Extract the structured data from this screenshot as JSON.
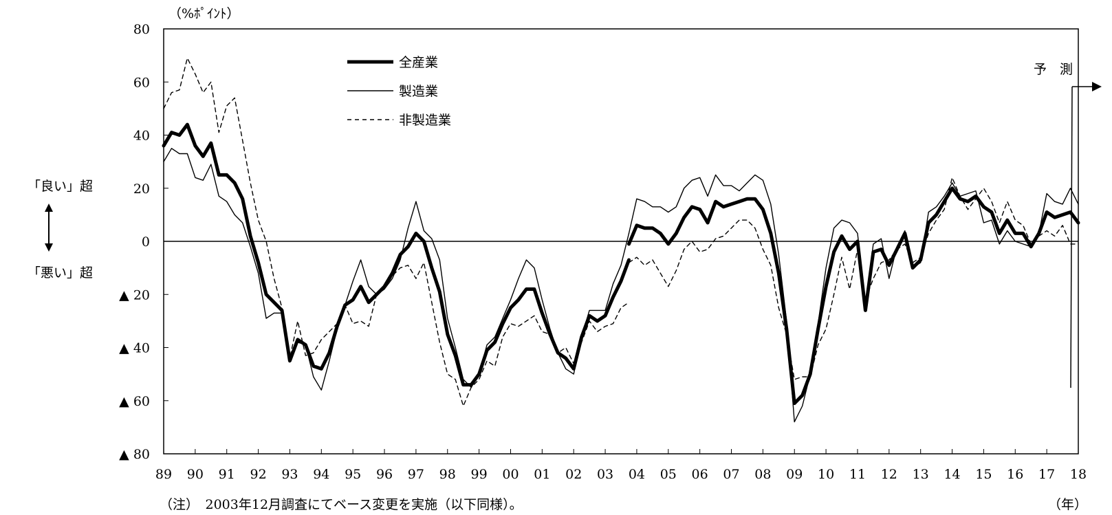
{
  "chart_data": {
    "type": "line",
    "y_unit": "（%ﾎﾟｲﾝﾄ）",
    "x_unit": "（年）",
    "note": "（注）　2003年12月調査にてベース変更を実施（以下同様）。",
    "ylim": [
      -80,
      80
    ],
    "y_ticks": [
      {
        "value": 80,
        "label": "80"
      },
      {
        "value": 60,
        "label": "60"
      },
      {
        "value": 40,
        "label": "40"
      },
      {
        "value": 20,
        "label": "20"
      },
      {
        "value": 0,
        "label": "0"
      },
      {
        "value": -20,
        "label": "▲ 20"
      },
      {
        "value": -40,
        "label": "▲ 40"
      },
      {
        "value": -60,
        "label": "▲ 60"
      },
      {
        "value": -80,
        "label": "▲ 80"
      }
    ],
    "x_ticks": [
      "89",
      "90",
      "91",
      "92",
      "93",
      "94",
      "95",
      "96",
      "97",
      "98",
      "99",
      "00",
      "01",
      "02",
      "03",
      "04",
      "05",
      "06",
      "07",
      "08",
      "09",
      "10",
      "11",
      "12",
      "13",
      "14",
      "15",
      "16",
      "17",
      "18"
    ],
    "left_annotations": {
      "upper": "「良い」超",
      "lower": "「悪い」超",
      "arrow_icon": "up-down-arrow-icon"
    },
    "forecast_label": "予　測",
    "grid": false,
    "legend_position": "top-center",
    "series": [
      {
        "name": "全産業",
        "color": "#000000",
        "style": "thick",
        "segments": [
          {
            "x": [
              1989.0,
              1989.25,
              1989.5,
              1989.75,
              1990.0,
              1990.25,
              1990.5,
              1990.75,
              1991.0,
              1991.25,
              1991.5,
              1991.75,
              1992.0,
              1992.25,
              1992.5,
              1992.75,
              1993.0,
              1993.25,
              1993.5,
              1993.75,
              1994.0,
              1994.25,
              1994.5,
              1994.75,
              1995.0,
              1995.25,
              1995.5,
              1995.75,
              1996.0,
              1996.25,
              1996.5,
              1996.75,
              1997.0,
              1997.25,
              1997.5,
              1997.75,
              1998.0,
              1998.25,
              1998.5,
              1998.75,
              1999.0,
              1999.25,
              1999.5,
              1999.75,
              2000.0,
              2000.25,
              2000.5,
              2000.75,
              2001.0,
              2001.25,
              2001.5,
              2001.75,
              2002.0,
              2002.25,
              2002.5,
              2002.75,
              2003.0,
              2003.25,
              2003.5,
              2003.75
            ],
            "y": [
              36,
              41,
              40,
              44,
              36,
              32,
              37,
              25,
              25,
              22,
              16,
              2,
              -8,
              -20,
              -23,
              -26,
              -45,
              -37,
              -39,
              -47,
              -48,
              -42,
              -32,
              -24,
              -22,
              -17,
              -23,
              -20,
              -17,
              -12,
              -5,
              -2,
              3,
              0,
              -10,
              -19,
              -35,
              -43,
              -54,
              -54,
              -50,
              -41,
              -38,
              -31,
              -25,
              -22,
              -18,
              -18,
              -27,
              -35,
              -42,
              -44,
              -48,
              -36,
              -28,
              -30,
              -28,
              -21,
              -15,
              -7
            ]
          },
          {
            "x": [
              2003.75,
              2004.0,
              2004.25,
              2004.5,
              2004.75,
              2005.0,
              2005.25,
              2005.5,
              2005.75,
              2006.0,
              2006.25,
              2006.5,
              2006.75,
              2007.0,
              2007.25,
              2007.5,
              2007.75,
              2008.0,
              2008.25,
              2008.5,
              2008.75,
              2009.0,
              2009.25,
              2009.5,
              2009.75,
              2010.0,
              2010.25,
              2010.5,
              2010.75,
              2011.0,
              2011.25,
              2011.5,
              2011.75,
              2012.0,
              2012.25,
              2012.5,
              2012.75,
              2013.0,
              2013.25,
              2013.5,
              2013.75,
              2014.0,
              2014.25,
              2014.5,
              2014.75,
              2015.0,
              2015.25,
              2015.5,
              2015.75,
              2016.0,
              2016.25,
              2016.5,
              2016.75,
              2017.0,
              2017.25,
              2017.5,
              2017.75,
              2018.0
            ],
            "y": [
              -1,
              6,
              5,
              5,
              3,
              -1,
              3,
              9,
              13,
              12,
              7,
              15,
              13,
              14,
              15,
              16,
              16,
              12,
              3,
              -12,
              -33,
              -61,
              -58,
              -50,
              -33,
              -17,
              -4,
              2,
              -3,
              0,
              -26,
              -4,
              -3,
              -9,
              -3,
              3,
              -10,
              -7,
              7,
              10,
              15,
              20,
              16,
              15,
              17,
              13,
              11,
              3,
              8,
              3,
              3,
              -2,
              3,
              11,
              9,
              10,
              11,
              7
            ]
          }
        ]
      },
      {
        "name": "製造業",
        "color": "#000000",
        "style": "thin",
        "segments": [
          {
            "x": [
              1989.0,
              1989.25,
              1989.5,
              1989.75,
              1990.0,
              1990.25,
              1990.5,
              1990.75,
              1991.0,
              1991.25,
              1991.5,
              1991.75,
              1992.0,
              1992.25,
              1992.5,
              1992.75,
              1993.0,
              1993.25,
              1993.5,
              1993.75,
              1994.0,
              1994.25,
              1994.5,
              1994.75,
              1995.0,
              1995.25,
              1995.5,
              1995.75,
              1996.0,
              1996.25,
              1996.5,
              1996.75,
              1997.0,
              1997.25,
              1997.5,
              1997.75,
              1998.0,
              1998.25,
              1998.5,
              1998.75,
              1999.0,
              1999.25,
              1999.5,
              1999.75,
              2000.0,
              2000.25,
              2000.5,
              2000.75,
              2001.0,
              2001.25,
              2001.5,
              2001.75,
              2002.0,
              2002.25,
              2002.5,
              2002.75,
              2003.0,
              2003.25,
              2003.5,
              2003.75
            ],
            "y": [
              30,
              35,
              33,
              33,
              24,
              23,
              29,
              17,
              15,
              10,
              7,
              -2,
              -12,
              -29,
              -27,
              -27,
              -44,
              -38,
              -39,
              -51,
              -56,
              -45,
              -33,
              -24,
              -15,
              -7,
              -17,
              -20,
              -18,
              -14,
              -7,
              5,
              15,
              4,
              1,
              -7,
              -29,
              -40,
              -52,
              -55,
              -50,
              -39,
              -36,
              -29,
              -22,
              -14,
              -7,
              -10,
              -22,
              -33,
              -42,
              -48,
              -50,
              -36,
              -26,
              -26,
              -26,
              -16,
              -9,
              3
            ]
          },
          {
            "x": [
              2003.75,
              2004.0,
              2004.25,
              2004.5,
              2004.75,
              2005.0,
              2005.25,
              2005.5,
              2005.75,
              2006.0,
              2006.25,
              2006.5,
              2006.75,
              2007.0,
              2007.25,
              2007.5,
              2007.75,
              2008.0,
              2008.25,
              2008.5,
              2008.75,
              2009.0,
              2009.25,
              2009.5,
              2009.75,
              2010.0,
              2010.25,
              2010.5,
              2010.75,
              2011.0,
              2011.25,
              2011.5,
              2011.75,
              2012.0,
              2012.25,
              2012.5,
              2012.75,
              2013.0,
              2013.25,
              2013.5,
              2013.75,
              2014.0,
              2014.25,
              2014.5,
              2014.75,
              2015.0,
              2015.25,
              2015.5,
              2015.75,
              2016.0,
              2016.25,
              2016.5,
              2016.75,
              2017.0,
              2017.25,
              2017.5,
              2017.75,
              2018.0
            ],
            "y": [
              3,
              16,
              15,
              13,
              13,
              11,
              13,
              20,
              23,
              24,
              17,
              25,
              21,
              21,
              19,
              22,
              25,
              23,
              14,
              -5,
              -30,
              -68,
              -62,
              -50,
              -31,
              -10,
              5,
              8,
              7,
              3,
              -24,
              -1,
              1,
              -14,
              -2,
              4,
              -10,
              -8,
              11,
              13,
              17,
              22,
              17,
              18,
              19,
              7,
              8,
              -1,
              4,
              0,
              -1,
              -2,
              3,
              18,
              15,
              14,
              20,
              14
            ]
          }
        ]
      },
      {
        "name": "非製造業",
        "color": "#000000",
        "style": "dashed",
        "segments": [
          {
            "x": [
              1989.0,
              1989.25,
              1989.5,
              1989.75,
              1990.0,
              1990.25,
              1990.5,
              1990.75,
              1991.0,
              1991.25,
              1991.5,
              1991.75,
              1992.0,
              1992.25,
              1992.5,
              1992.75,
              1993.0,
              1993.25,
              1993.5,
              1993.75,
              1994.0,
              1994.25,
              1994.5,
              1994.75,
              1995.0,
              1995.25,
              1995.5,
              1995.75,
              1996.0,
              1996.25,
              1996.5,
              1996.75,
              1997.0,
              1997.25,
              1997.5,
              1997.75,
              1998.0,
              1998.25,
              1998.5,
              1998.75,
              1999.0,
              1999.25,
              1999.5,
              1999.75,
              2000.0,
              2000.25,
              2000.5,
              2000.75,
              2001.0,
              2001.25,
              2001.5,
              2001.75,
              2002.0,
              2002.25,
              2002.5,
              2002.75,
              2003.0,
              2003.25,
              2003.5,
              2003.75
            ],
            "y": [
              50,
              56,
              57,
              69,
              63,
              56,
              60,
              41,
              51,
              54,
              38,
              22,
              8,
              0,
              -14,
              -25,
              -44,
              -30,
              -43,
              -42,
              -37,
              -34,
              -31,
              -24,
              -31,
              -30,
              -32,
              -20,
              -18,
              -13,
              -10,
              -9,
              -14,
              -8,
              -23,
              -38,
              -50,
              -52,
              -62,
              -55,
              -52,
              -45,
              -47,
              -36,
              -31,
              -32,
              -30,
              -28,
              -34,
              -35,
              -42,
              -40,
              -46,
              -38,
              -30,
              -34,
              -32,
              -31,
              -25,
              -23
            ]
          },
          {
            "x": [
              2003.75,
              2004.0,
              2004.25,
              2004.5,
              2004.75,
              2005.0,
              2005.25,
              2005.5,
              2005.75,
              2006.0,
              2006.25,
              2006.5,
              2006.75,
              2007.0,
              2007.25,
              2007.5,
              2007.75,
              2008.0,
              2008.25,
              2008.5,
              2008.75,
              2009.0,
              2009.25,
              2009.5,
              2009.75,
              2010.0,
              2010.25,
              2010.5,
              2010.75,
              2011.0,
              2011.25,
              2011.5,
              2011.75,
              2012.0,
              2012.25,
              2012.5,
              2012.75,
              2013.0,
              2013.25,
              2013.5,
              2013.75,
              2014.0,
              2014.25,
              2014.5,
              2014.75,
              2015.0,
              2015.25,
              2015.5,
              2015.75,
              2016.0,
              2016.25,
              2016.5,
              2016.75,
              2017.0,
              2017.25,
              2017.5,
              2017.75,
              2018.0
            ],
            "y": [
              -8,
              -6,
              -9,
              -7,
              -12,
              -17,
              -11,
              -3,
              0,
              -4,
              -3,
              1,
              2,
              5,
              8,
              8,
              5,
              -3,
              -9,
              -25,
              -35,
              -52,
              -51,
              -51,
              -39,
              -33,
              -20,
              -6,
              -18,
              -3,
              -22,
              -14,
              -8,
              -7,
              -3,
              -1,
              -8,
              -6,
              3,
              8,
              12,
              24,
              17,
              12,
              16,
              20,
              15,
              7,
              15,
              8,
              6,
              -1,
              2,
              4,
              2,
              6,
              -1,
              -1
            ]
          }
        ]
      }
    ]
  }
}
